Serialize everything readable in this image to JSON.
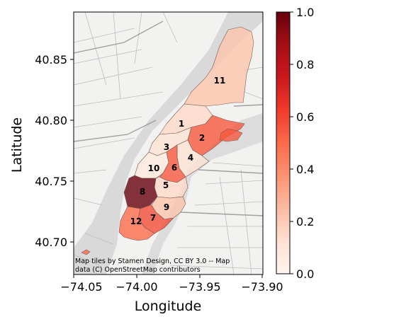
{
  "chart_data": {
    "type": "choropleth",
    "xlabel": "Longitude",
    "ylabel": "Latitude",
    "xlim": [
      -74.05,
      -73.9
    ],
    "ylim": [
      40.675,
      40.89
    ],
    "xticks": [
      -74.05,
      -74.0,
      -73.95,
      -73.9
    ],
    "yticks": [
      40.7,
      40.75,
      40.8,
      40.85
    ],
    "xtick_labels": [
      "−74.05",
      "−74.00",
      "−73.95",
      "−73.90"
    ],
    "ytick_labels": [
      "40.70",
      "40.75",
      "40.80",
      "40.85"
    ],
    "attribution": [
      "Map tiles by Stamen Design, CC BY 3.0 -- Map",
      "data (C) OpenStreetMap contributors"
    ],
    "colorbar": {
      "cmap": "Reds",
      "range": [
        0,
        1
      ],
      "ticks": [
        0.0,
        0.2,
        0.4,
        0.6,
        0.8,
        1.0
      ],
      "tick_labels": [
        "0.0",
        "0.2",
        "0.4",
        "0.6",
        "0.8",
        "1.0"
      ]
    },
    "regions": [
      {
        "label": "1",
        "value": 0.15
      },
      {
        "label": "2",
        "value": 0.55
      },
      {
        "label": "3",
        "value": 0.12
      },
      {
        "label": "4",
        "value": 0.12
      },
      {
        "label": "5",
        "value": 0.15
      },
      {
        "label": "6",
        "value": 0.55
      },
      {
        "label": "7",
        "value": 0.58
      },
      {
        "label": "8",
        "value": 1.0
      },
      {
        "label": "9",
        "value": 0.22
      },
      {
        "label": "10",
        "value": 0.08
      },
      {
        "label": "11",
        "value": 0.22
      },
      {
        "label": "12",
        "value": 0.5
      }
    ]
  }
}
